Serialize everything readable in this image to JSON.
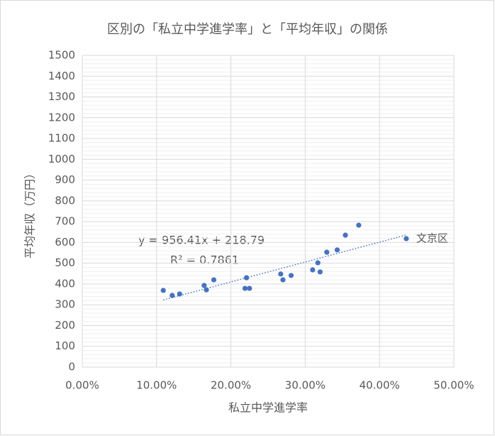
{
  "chart_data": {
    "type": "scatter",
    "title": "区別の「私立中学進学率」と「平均年収」の関係",
    "x_label": "私立中学進学率",
    "y_label": "平均年収（万円）",
    "xlim": [
      0,
      0.5
    ],
    "xticks": [
      {
        "value": 0,
        "label": "0.00%"
      },
      {
        "value": 0.1,
        "label": "10.00%"
      },
      {
        "value": 0.2,
        "label": "20.00%"
      },
      {
        "value": 0.3,
        "label": "30.00%"
      },
      {
        "value": 0.4,
        "label": "40.00%"
      },
      {
        "value": 0.5,
        "label": "50.00%"
      }
    ],
    "ylim": [
      0,
      1500
    ],
    "yticks": [
      0,
      100,
      200,
      300,
      400,
      500,
      600,
      700,
      800,
      900,
      1000,
      1100,
      1200,
      1300,
      1400,
      1500
    ],
    "grid": true,
    "minor_grid": true,
    "series": [
      {
        "color": "#4472c4",
        "x": [
          0.109,
          0.121,
          0.131,
          0.164,
          0.167,
          0.177,
          0.219,
          0.221,
          0.225,
          0.267,
          0.27,
          0.281,
          0.31,
          0.317,
          0.32,
          0.329,
          0.343,
          0.354,
          0.372,
          0.436
        ],
        "values": [
          369,
          345,
          352,
          393,
          372,
          420,
          379,
          430,
          379,
          448,
          420,
          441,
          468,
          502,
          458,
          553,
          564,
          635,
          683,
          618
        ],
        "labels": [
          null,
          null,
          null,
          null,
          null,
          null,
          null,
          null,
          null,
          null,
          null,
          null,
          null,
          null,
          null,
          null,
          null,
          null,
          null,
          "文京区"
        ]
      }
    ],
    "trendline": {
      "slope": 956.41,
      "intercept": 218.79,
      "color": "#4472c4",
      "equation": "y = 956.41x + 218.79",
      "r_squared": "R² = 0.7861"
    }
  }
}
